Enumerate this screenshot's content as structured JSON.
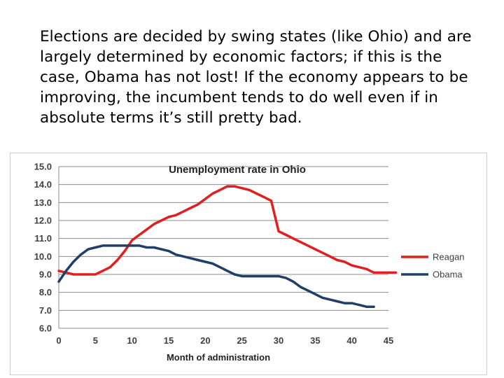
{
  "slide": {
    "caption": "Elections are decided by swing states (like Ohio) and are largely determined by economic factors; if this is the case, Obama has not lost! If the economy appears to be improving, the incumbent tends to do well even if in absolute terms it’s still pretty bad."
  },
  "chart_data": {
    "type": "line",
    "title": "Unemployment rate in Ohio",
    "xlabel": "Month of administration",
    "ylabel": "",
    "xlim": [
      0,
      45
    ],
    "ylim": [
      6.0,
      15.0
    ],
    "x_ticks": [
      "0",
      "5",
      "10",
      "15",
      "20",
      "25",
      "30",
      "35",
      "40",
      "45"
    ],
    "y_ticks": [
      "6.0",
      "7.0",
      "8.0",
      "9.0",
      "10.0",
      "11.0",
      "12.0",
      "13.0",
      "14.0",
      "15.0"
    ],
    "grid": "horizontal",
    "legend_position": "right",
    "series": [
      {
        "name": "Reagan",
        "color": "#e02020",
        "points": [
          [
            0,
            9.2
          ],
          [
            1,
            9.1
          ],
          [
            2,
            9.0
          ],
          [
            3,
            9.0
          ],
          [
            4,
            9.0
          ],
          [
            5,
            9.0
          ],
          [
            6,
            9.2
          ],
          [
            7,
            9.4
          ],
          [
            8,
            9.8
          ],
          [
            9,
            10.3
          ],
          [
            10,
            10.9
          ],
          [
            11,
            11.2
          ],
          [
            12,
            11.5
          ],
          [
            13,
            11.8
          ],
          [
            14,
            12.0
          ],
          [
            15,
            12.2
          ],
          [
            16,
            12.3
          ],
          [
            17,
            12.5
          ],
          [
            18,
            12.7
          ],
          [
            19,
            12.9
          ],
          [
            20,
            13.2
          ],
          [
            21,
            13.5
          ],
          [
            22,
            13.7
          ],
          [
            23,
            13.9
          ],
          [
            24,
            13.9
          ],
          [
            25,
            13.8
          ],
          [
            26,
            13.7
          ],
          [
            27,
            13.5
          ],
          [
            28,
            13.3
          ],
          [
            29,
            13.1
          ],
          [
            30,
            11.4
          ],
          [
            31,
            11.2
          ],
          [
            32,
            11.0
          ],
          [
            33,
            10.8
          ],
          [
            34,
            10.6
          ],
          [
            35,
            10.4
          ],
          [
            36,
            10.2
          ],
          [
            37,
            10.0
          ],
          [
            38,
            9.8
          ],
          [
            39,
            9.7
          ],
          [
            40,
            9.5
          ],
          [
            41,
            9.4
          ],
          [
            42,
            9.3
          ],
          [
            43,
            9.1
          ],
          [
            44,
            9.1
          ],
          [
            45,
            9.1
          ],
          [
            46,
            9.1
          ]
        ]
      },
      {
        "name": "Obama",
        "color": "#1f3f6a",
        "points": [
          [
            0,
            8.6
          ],
          [
            1,
            9.2
          ],
          [
            2,
            9.7
          ],
          [
            3,
            10.1
          ],
          [
            4,
            10.4
          ],
          [
            5,
            10.5
          ],
          [
            6,
            10.6
          ],
          [
            7,
            10.6
          ],
          [
            8,
            10.6
          ],
          [
            9,
            10.6
          ],
          [
            10,
            10.6
          ],
          [
            11,
            10.6
          ],
          [
            12,
            10.5
          ],
          [
            13,
            10.5
          ],
          [
            14,
            10.4
          ],
          [
            15,
            10.3
          ],
          [
            16,
            10.1
          ],
          [
            17,
            10.0
          ],
          [
            18,
            9.9
          ],
          [
            19,
            9.8
          ],
          [
            20,
            9.7
          ],
          [
            21,
            9.6
          ],
          [
            22,
            9.4
          ],
          [
            23,
            9.2
          ],
          [
            24,
            9.0
          ],
          [
            25,
            8.9
          ],
          [
            26,
            8.9
          ],
          [
            27,
            8.9
          ],
          [
            28,
            8.9
          ],
          [
            29,
            8.9
          ],
          [
            30,
            8.9
          ],
          [
            31,
            8.8
          ],
          [
            32,
            8.6
          ],
          [
            33,
            8.3
          ],
          [
            34,
            8.1
          ],
          [
            35,
            7.9
          ],
          [
            36,
            7.7
          ],
          [
            37,
            7.6
          ],
          [
            38,
            7.5
          ],
          [
            39,
            7.4
          ],
          [
            40,
            7.4
          ],
          [
            41,
            7.3
          ],
          [
            42,
            7.2
          ],
          [
            43,
            7.2
          ]
        ]
      }
    ]
  }
}
